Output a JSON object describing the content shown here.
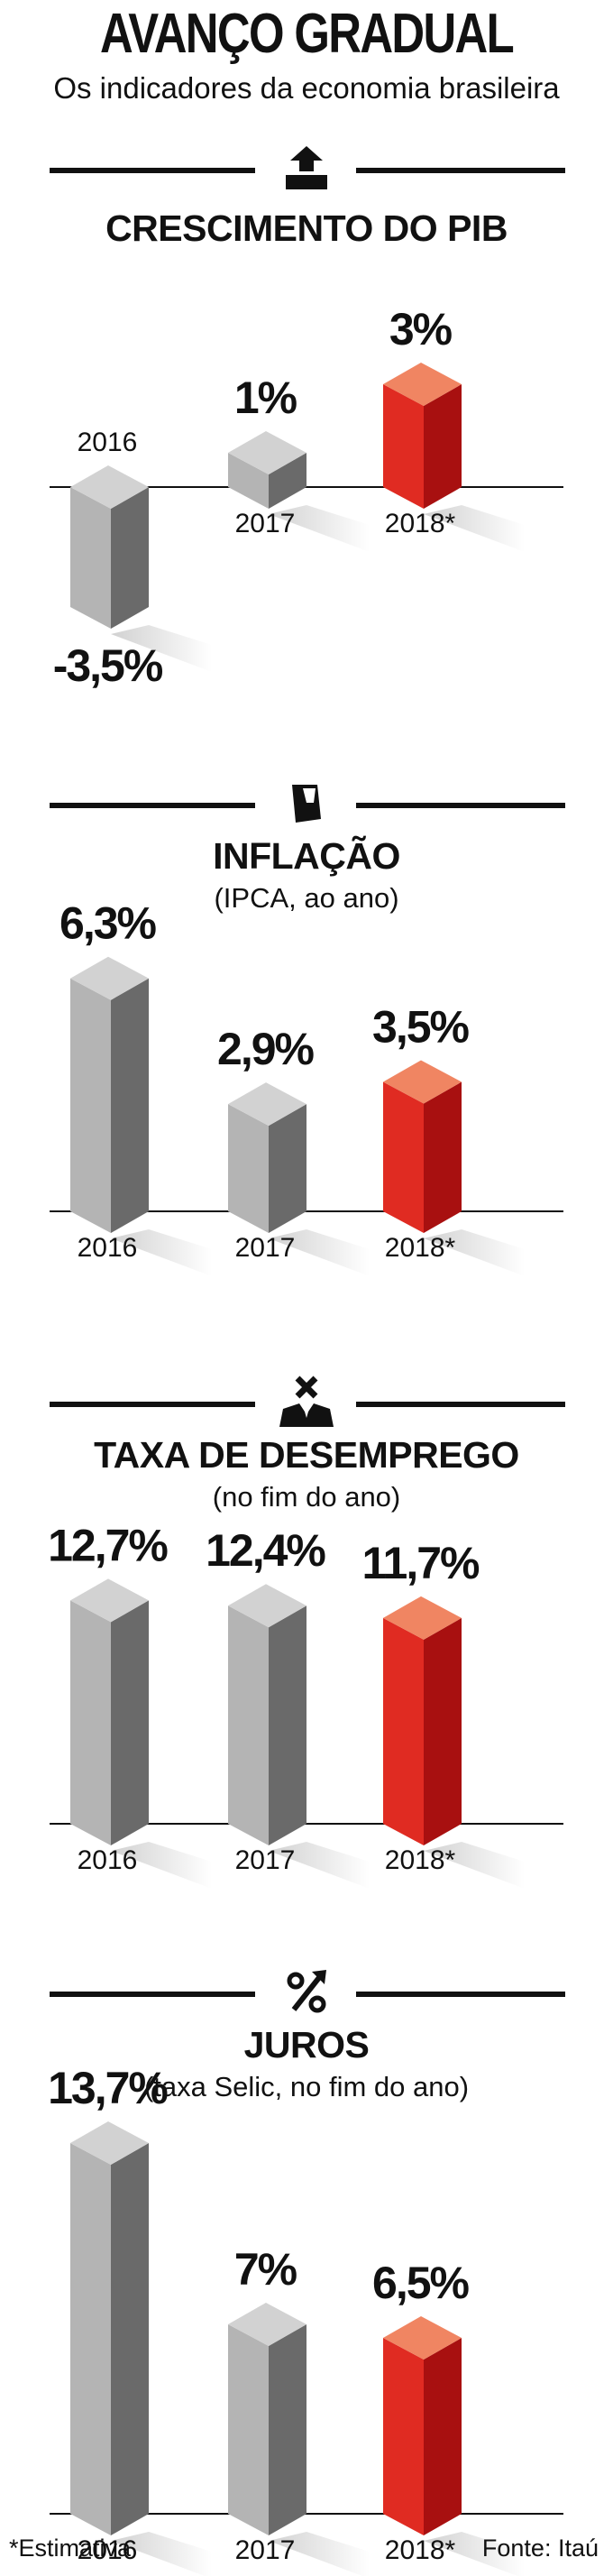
{
  "title": "AVANÇO GRADUAL",
  "subtitle": "Os indicadores da economia brasileira",
  "colors": {
    "gray_front": "#b4b4b4",
    "gray_side": "#6a6a6a",
    "gray_top": "#d2d2d2",
    "red_front": "#e02b22",
    "red_side": "#a81010",
    "red_top": "#f08562"
  },
  "panels": [
    {
      "icon": "money-up-icon",
      "title": "CRESCIMENTO DO PIB",
      "subtitle": ""
    },
    {
      "icon": "wallet-icon",
      "title": "INFLAÇÃO",
      "subtitle": "(IPCA, ao ano)"
    },
    {
      "icon": "unemployed-person-icon",
      "title": "TAXA DE DESEMPREGO",
      "subtitle": "(no fim do ano)"
    },
    {
      "icon": "percent-up-icon",
      "title": "JUROS",
      "subtitle": "(taxa Selic, no fim do ano)"
    }
  ],
  "chart_data": [
    {
      "type": "bar",
      "title": "CRESCIMENTO DO PIB",
      "categories": [
        "2016",
        "2017",
        "2018*"
      ],
      "values": [
        -3.5,
        1,
        3
      ],
      "value_labels": [
        "-3,5%",
        "1%",
        "3%"
      ],
      "ylim": [
        -4,
        4
      ]
    },
    {
      "type": "bar",
      "title": "INFLAÇÃO",
      "categories": [
        "2016",
        "2017",
        "2018*"
      ],
      "values": [
        6.3,
        2.9,
        3.5
      ],
      "value_labels": [
        "6,3%",
        "2,9%",
        "3,5%"
      ],
      "ylim": [
        0,
        7
      ]
    },
    {
      "type": "bar",
      "title": "TAXA DE DESEMPREGO",
      "categories": [
        "2016",
        "2017",
        "2018*"
      ],
      "values": [
        12.7,
        12.4,
        11.7
      ],
      "value_labels": [
        "12,7%",
        "12,4%",
        "11,7%"
      ],
      "ylim": [
        0,
        13
      ]
    },
    {
      "type": "bar",
      "title": "JUROS",
      "categories": [
        "2016",
        "2017",
        "2018*"
      ],
      "values": [
        13.7,
        7,
        6.5
      ],
      "value_labels": [
        "13,7%",
        "7%",
        "6,5%"
      ],
      "ylim": [
        0,
        14
      ]
    }
  ],
  "footer": {
    "note": "*Estimativa",
    "source": "Fonte: Itaú"
  }
}
